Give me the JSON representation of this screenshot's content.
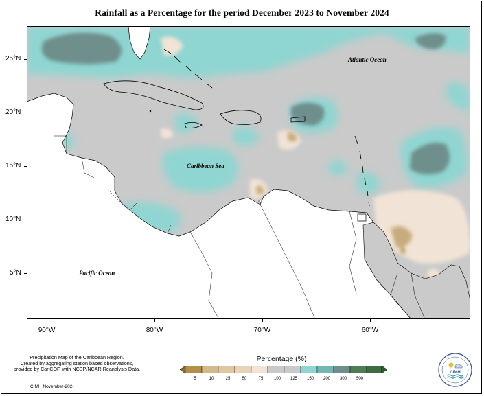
{
  "title": "Rainfall as a Percentage for the period December 2023 to November 2024",
  "map": {
    "latitude_labels": [
      "25°N",
      "20°N",
      "15°N",
      "10°N",
      "5°N"
    ],
    "longitude_labels": [
      "90°W",
      "80°W",
      "70°W",
      "60°W"
    ],
    "region_labels": {
      "atlantic": "Atlantic Ocean",
      "caribbean": "Caribbean Sea",
      "pacific": "Pacific Ocean"
    },
    "land_color": "#ffffff",
    "base_color": "#cacaca"
  },
  "legend": {
    "title": "Percentage (%)",
    "ticks": [
      "5",
      "10",
      "25",
      "50",
      "75",
      "100",
      "125",
      "150",
      "200",
      "300",
      "500"
    ],
    "colors": [
      "#8c6d2c",
      "#b38f4a",
      "#d4b98a",
      "#e8d2b8",
      "#f1e4d6",
      "#cacaca",
      "#cacaca",
      "#8fd5d1",
      "#74b7b2",
      "#6e8f8c",
      "#3e6b3f",
      "#2f5a30"
    ]
  },
  "credit": {
    "line1": "Precipitation Map of the Caribbean Region.",
    "line2": "Created by aggregating station based observations,",
    "line3": "provided by CariCOF, with NCEP/NCAR Reanalysis Data.",
    "date": "CIMH November-202-"
  },
  "logo": {
    "text": "CIMH"
  }
}
